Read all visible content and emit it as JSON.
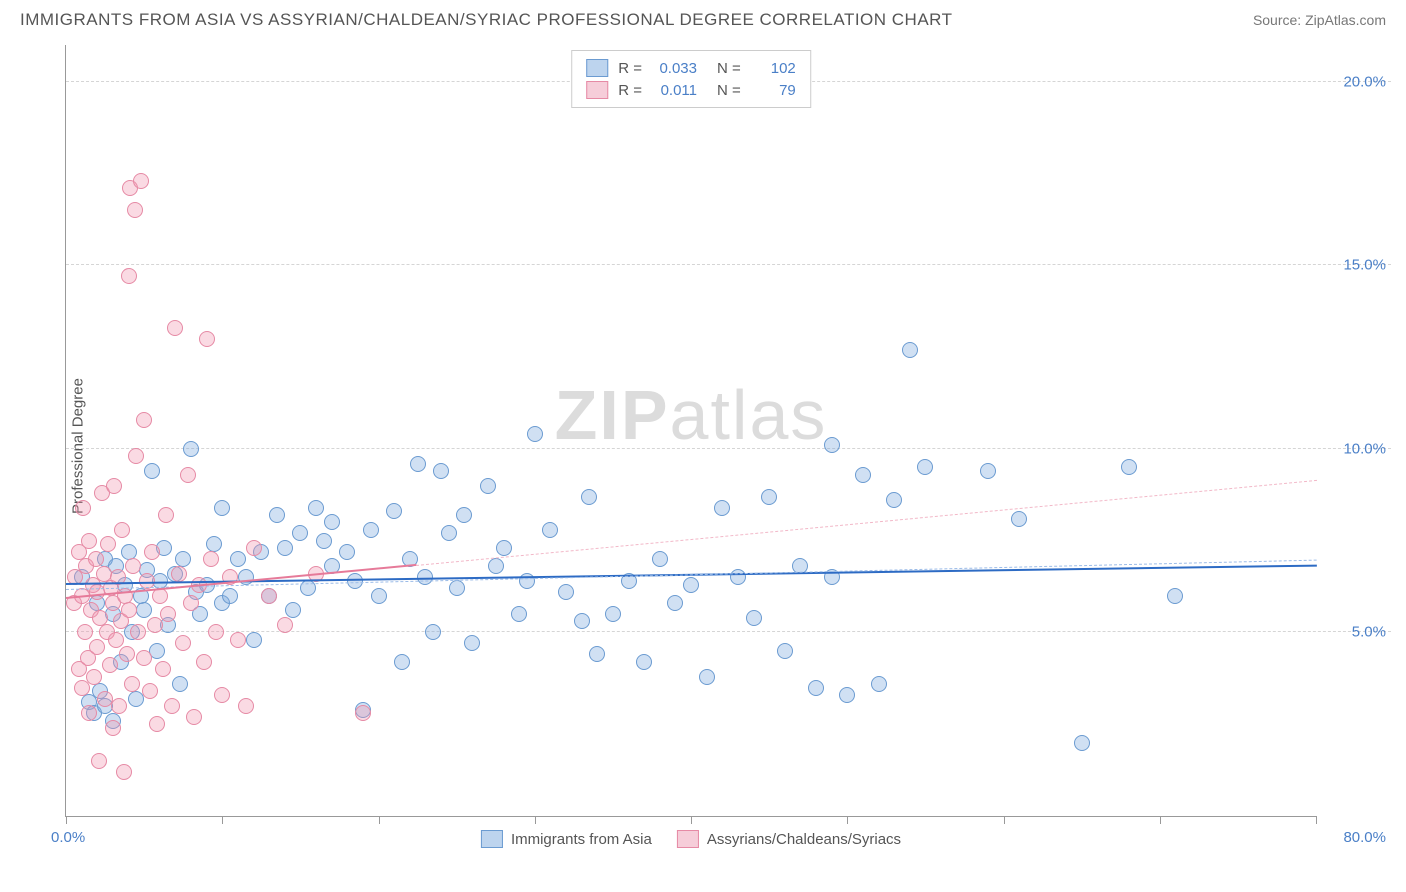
{
  "title": "IMMIGRANTS FROM ASIA VS ASSYRIAN/CHALDEAN/SYRIAC PROFESSIONAL DEGREE CORRELATION CHART",
  "source": "Source: ZipAtlas.com",
  "y_axis_label": "Professional Degree",
  "watermark_a": "ZIP",
  "watermark_b": "atlas",
  "chart": {
    "type": "scatter",
    "xlim": [
      0,
      80
    ],
    "ylim": [
      0,
      21
    ],
    "x_ticks_label_min": "0.0%",
    "x_ticks_label_max": "80.0%",
    "x_tick_positions": [
      0,
      10,
      20,
      30,
      40,
      50,
      60,
      70,
      80
    ],
    "y_ticks": [
      {
        "v": 5,
        "label": "5.0%"
      },
      {
        "v": 10,
        "label": "10.0%"
      },
      {
        "v": 15,
        "label": "15.0%"
      },
      {
        "v": 20,
        "label": "20.0%"
      }
    ],
    "grid_color": "#d5d5d5",
    "background_color": "#ffffff",
    "marker_radius": 8,
    "marker_stroke_width": 1.5,
    "series": [
      {
        "name": "Immigrants from Asia",
        "fill": "rgba(120,165,220,0.35)",
        "stroke": "#6b9bd1",
        "swatch_fill": "#bdd4ee",
        "swatch_border": "#6b9bd1",
        "R": "0.033",
        "N": "102",
        "trend": {
          "y1": 6.3,
          "y2": 6.8,
          "color": "#2d6bc4",
          "dash_color": "#9cbce8"
        },
        "points": [
          [
            1,
            6.5
          ],
          [
            1.5,
            3.1
          ],
          [
            1.8,
            2.8
          ],
          [
            2,
            5.8
          ],
          [
            2.2,
            3.4
          ],
          [
            2.5,
            7
          ],
          [
            2.5,
            3.0
          ],
          [
            3,
            5.5
          ],
          [
            3,
            2.6
          ],
          [
            3.2,
            6.8
          ],
          [
            3.5,
            4.2
          ],
          [
            3.8,
            6.3
          ],
          [
            4,
            7.2
          ],
          [
            4.2,
            5.0
          ],
          [
            4.5,
            3.2
          ],
          [
            4.8,
            6.0
          ],
          [
            5,
            5.6
          ],
          [
            5.2,
            6.7
          ],
          [
            5.5,
            9.4
          ],
          [
            5.8,
            4.5
          ],
          [
            6,
            6.4
          ],
          [
            6.3,
            7.3
          ],
          [
            6.5,
            5.2
          ],
          [
            7,
            6.6
          ],
          [
            7.3,
            3.6
          ],
          [
            7.5,
            7.0
          ],
          [
            8,
            10.0
          ],
          [
            8.3,
            6.1
          ],
          [
            8.6,
            5.5
          ],
          [
            9,
            6.3
          ],
          [
            9.5,
            7.4
          ],
          [
            10,
            5.8
          ],
          [
            10,
            8.4
          ],
          [
            10.5,
            6.0
          ],
          [
            11,
            7.0
          ],
          [
            11.5,
            6.5
          ],
          [
            12,
            4.8
          ],
          [
            12.5,
            7.2
          ],
          [
            13,
            6.0
          ],
          [
            13.5,
            8.2
          ],
          [
            14,
            7.3
          ],
          [
            14.5,
            5.6
          ],
          [
            15,
            7.7
          ],
          [
            15.5,
            6.2
          ],
          [
            16,
            8.4
          ],
          [
            16.5,
            7.5
          ],
          [
            17,
            6.8
          ],
          [
            17,
            8.0
          ],
          [
            18,
            7.2
          ],
          [
            18.5,
            6.4
          ],
          [
            19,
            2.9
          ],
          [
            19.5,
            7.8
          ],
          [
            20,
            6.0
          ],
          [
            21,
            8.3
          ],
          [
            21.5,
            4.2
          ],
          [
            22,
            7.0
          ],
          [
            22.5,
            9.6
          ],
          [
            23,
            6.5
          ],
          [
            23.5,
            5.0
          ],
          [
            24,
            9.4
          ],
          [
            24.5,
            7.7
          ],
          [
            25,
            6.2
          ],
          [
            25.5,
            8.2
          ],
          [
            26,
            4.7
          ],
          [
            27,
            9.0
          ],
          [
            27.5,
            6.8
          ],
          [
            28,
            7.3
          ],
          [
            29,
            5.5
          ],
          [
            29.5,
            6.4
          ],
          [
            30,
            10.4
          ],
          [
            31,
            7.8
          ],
          [
            32,
            6.1
          ],
          [
            33,
            5.3
          ],
          [
            33.5,
            8.7
          ],
          [
            34,
            4.4
          ],
          [
            35,
            5.5
          ],
          [
            36,
            6.4
          ],
          [
            37,
            4.2
          ],
          [
            38,
            7.0
          ],
          [
            39,
            5.8
          ],
          [
            40,
            6.3
          ],
          [
            41,
            3.8
          ],
          [
            42,
            8.4
          ],
          [
            43,
            6.5
          ],
          [
            44,
            5.4
          ],
          [
            45,
            8.7
          ],
          [
            46,
            4.5
          ],
          [
            47,
            6.8
          ],
          [
            48,
            3.5
          ],
          [
            49,
            10.1
          ],
          [
            49,
            6.5
          ],
          [
            50,
            3.3
          ],
          [
            51,
            9.3
          ],
          [
            52,
            3.6
          ],
          [
            53,
            8.6
          ],
          [
            54,
            12.7
          ],
          [
            55,
            9.5
          ],
          [
            59,
            9.4
          ],
          [
            61,
            8.1
          ],
          [
            65,
            2.0
          ],
          [
            68,
            9.5
          ],
          [
            71,
            6.0
          ]
        ]
      },
      {
        "name": "Assyrians/Chaldeans/Syriacs",
        "fill": "rgba(240,150,175,0.35)",
        "stroke": "#e68aa5",
        "swatch_fill": "#f6cdd9",
        "swatch_border": "#e68aa5",
        "R": "0.011",
        "N": "79",
        "trend": {
          "y1": 5.9,
          "y2": 6.8,
          "x2_ratio": 0.28,
          "color": "#e67a99",
          "dash_color": "#f2b8c8"
        },
        "points": [
          [
            0.5,
            5.8
          ],
          [
            0.6,
            6.5
          ],
          [
            0.8,
            4.0
          ],
          [
            0.8,
            7.2
          ],
          [
            1,
            3.5
          ],
          [
            1,
            6.0
          ],
          [
            1.1,
            8.4
          ],
          [
            1.2,
            5.0
          ],
          [
            1.3,
            6.8
          ],
          [
            1.4,
            4.3
          ],
          [
            1.5,
            7.5
          ],
          [
            1.5,
            2.8
          ],
          [
            1.6,
            5.6
          ],
          [
            1.7,
            6.3
          ],
          [
            1.8,
            3.8
          ],
          [
            1.9,
            7.0
          ],
          [
            2,
            4.6
          ],
          [
            2,
            6.1
          ],
          [
            2.1,
            1.5
          ],
          [
            2.2,
            5.4
          ],
          [
            2.3,
            8.8
          ],
          [
            2.4,
            6.6
          ],
          [
            2.5,
            3.2
          ],
          [
            2.6,
            5.0
          ],
          [
            2.7,
            7.4
          ],
          [
            2.8,
            4.1
          ],
          [
            2.9,
            6.2
          ],
          [
            3,
            2.4
          ],
          [
            3,
            5.8
          ],
          [
            3.1,
            9.0
          ],
          [
            3.2,
            4.8
          ],
          [
            3.3,
            6.5
          ],
          [
            3.4,
            3.0
          ],
          [
            3.5,
            5.3
          ],
          [
            3.6,
            7.8
          ],
          [
            3.7,
            1.2
          ],
          [
            3.8,
            6.0
          ],
          [
            3.9,
            4.4
          ],
          [
            4,
            14.7
          ],
          [
            4,
            5.6
          ],
          [
            4.1,
            17.1
          ],
          [
            4.2,
            3.6
          ],
          [
            4.3,
            6.8
          ],
          [
            4.4,
            16.5
          ],
          [
            4.5,
            9.8
          ],
          [
            4.6,
            5.0
          ],
          [
            4.8,
            17.3
          ],
          [
            5,
            4.3
          ],
          [
            5,
            10.8
          ],
          [
            5.2,
            6.4
          ],
          [
            5.4,
            3.4
          ],
          [
            5.5,
            7.2
          ],
          [
            5.7,
            5.2
          ],
          [
            5.8,
            2.5
          ],
          [
            6,
            6.0
          ],
          [
            6.2,
            4.0
          ],
          [
            6.4,
            8.2
          ],
          [
            6.5,
            5.5
          ],
          [
            6.8,
            3.0
          ],
          [
            7,
            13.3
          ],
          [
            7.2,
            6.6
          ],
          [
            7.5,
            4.7
          ],
          [
            7.8,
            9.3
          ],
          [
            8,
            5.8
          ],
          [
            8.2,
            2.7
          ],
          [
            8.5,
            6.3
          ],
          [
            8.8,
            4.2
          ],
          [
            9,
            13.0
          ],
          [
            9.3,
            7.0
          ],
          [
            9.6,
            5.0
          ],
          [
            10,
            3.3
          ],
          [
            10.5,
            6.5
          ],
          [
            11,
            4.8
          ],
          [
            11.5,
            3.0
          ],
          [
            12,
            7.3
          ],
          [
            13,
            6.0
          ],
          [
            14,
            5.2
          ],
          [
            16,
            6.6
          ],
          [
            19,
            2.8
          ]
        ]
      }
    ],
    "legend_top_labels": {
      "R": "R =",
      "N": "N ="
    }
  }
}
